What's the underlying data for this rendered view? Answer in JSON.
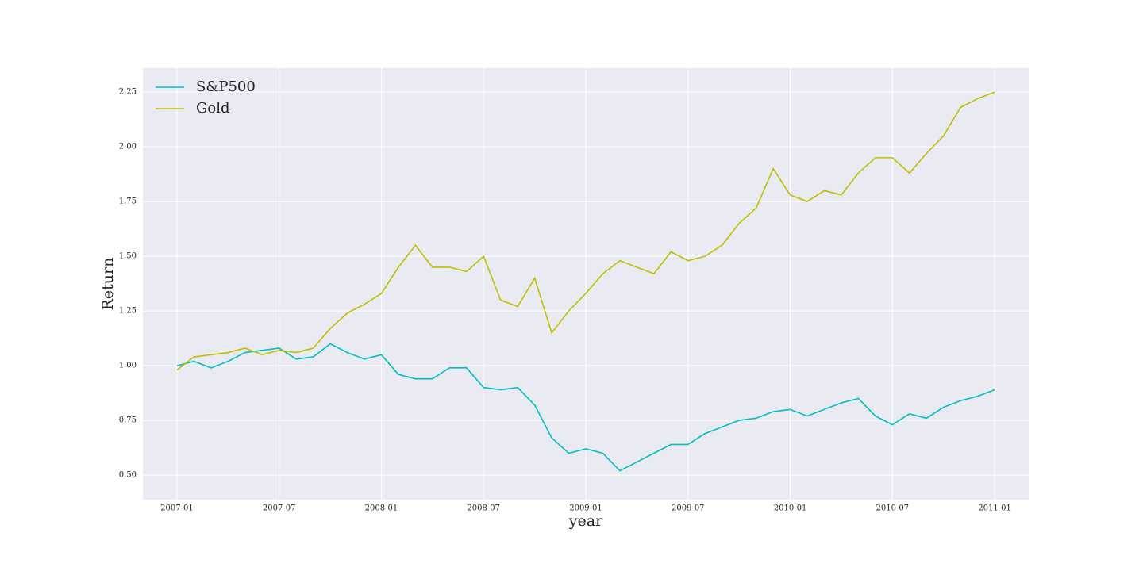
{
  "chart_data": {
    "type": "line",
    "x_label": "year",
    "y_label": "Return",
    "x": [
      "2007-01",
      "2007-02",
      "2007-03",
      "2007-04",
      "2007-05",
      "2007-06",
      "2007-07",
      "2007-08",
      "2007-09",
      "2007-10",
      "2007-11",
      "2007-12",
      "2008-01",
      "2008-02",
      "2008-03",
      "2008-04",
      "2008-05",
      "2008-06",
      "2008-07",
      "2008-08",
      "2008-09",
      "2008-10",
      "2008-11",
      "2008-12",
      "2009-01",
      "2009-02",
      "2009-03",
      "2009-04",
      "2009-05",
      "2009-06",
      "2009-07",
      "2009-08",
      "2009-09",
      "2009-10",
      "2009-11",
      "2009-12",
      "2010-01",
      "2010-02",
      "2010-03",
      "2010-04",
      "2010-05",
      "2010-06",
      "2010-07",
      "2010-08",
      "2010-09",
      "2010-10",
      "2010-11",
      "2010-12",
      "2011-01"
    ],
    "series": [
      {
        "name": "S&P500",
        "color": "#00bfbf",
        "values": [
          1.0,
          1.02,
          0.99,
          1.02,
          1.06,
          1.07,
          1.08,
          1.03,
          1.04,
          1.1,
          1.06,
          1.03,
          1.05,
          0.96,
          0.94,
          0.94,
          0.99,
          0.99,
          0.9,
          0.89,
          0.9,
          0.82,
          0.67,
          0.6,
          0.62,
          0.6,
          0.52,
          0.56,
          0.6,
          0.64,
          0.64,
          0.69,
          0.72,
          0.75,
          0.76,
          0.79,
          0.8,
          0.77,
          0.8,
          0.83,
          0.85,
          0.77,
          0.73,
          0.78,
          0.76,
          0.81,
          0.84,
          0.86,
          0.89
        ]
      },
      {
        "name": "Gold",
        "color": "#bfbf00",
        "values": [
          0.98,
          1.04,
          1.05,
          1.06,
          1.08,
          1.05,
          1.07,
          1.06,
          1.08,
          1.17,
          1.24,
          1.28,
          1.33,
          1.45,
          1.55,
          1.45,
          1.45,
          1.43,
          1.5,
          1.3,
          1.27,
          1.4,
          1.15,
          1.25,
          1.33,
          1.42,
          1.48,
          1.45,
          1.42,
          1.52,
          1.48,
          1.5,
          1.55,
          1.65,
          1.72,
          1.9,
          1.78,
          1.75,
          1.8,
          1.78,
          1.88,
          1.95,
          1.95,
          1.88,
          1.97,
          2.05,
          2.18,
          2.22,
          2.25
        ]
      }
    ],
    "xlim": [
      "2006-11",
      "2011-03"
    ],
    "xticks": [
      "2007-01",
      "2007-07",
      "2008-01",
      "2008-07",
      "2009-01",
      "2009-07",
      "2010-01",
      "2010-07",
      "2011-01"
    ],
    "ylim": [
      0.388,
      2.359
    ],
    "yticks": [
      {
        "value": 0.5,
        "label": "0.50"
      },
      0.75,
      {
        "value": 1.0,
        "label": "1.00"
      },
      1.25,
      {
        "value": 1.5,
        "label": "1.50"
      },
      1.75,
      {
        "value": 2.0,
        "label": "2.00"
      },
      2.25
    ],
    "grid": true,
    "legend": "upper left"
  }
}
